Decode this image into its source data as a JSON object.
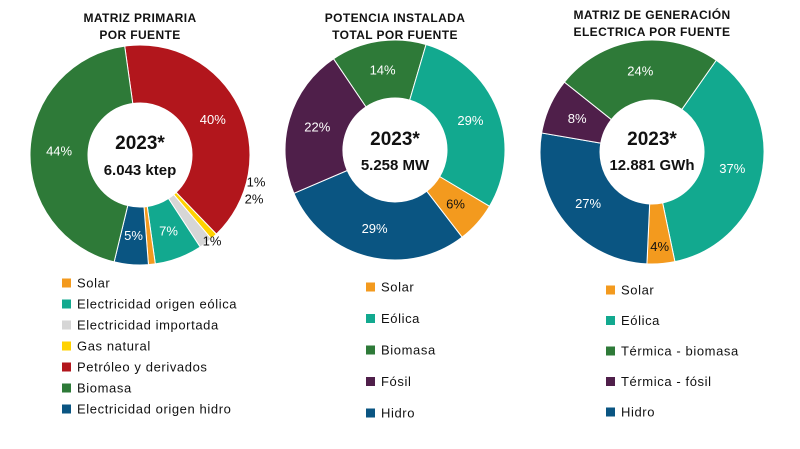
{
  "chart_data": [
    {
      "type": "donut",
      "title_lines": [
        "MATRIZ PRIMARIA",
        "POR FUENTE"
      ],
      "center_year": "2023*",
      "center_total": "6.043 ktep",
      "series": [
        {
          "name": "Petróleo y derivados",
          "value": 40,
          "label": "40%",
          "color": "#b2161c"
        },
        {
          "name": "Gas natural",
          "value": 1,
          "label": "1%",
          "color": "#ffd200"
        },
        {
          "name": "Electricidad importada",
          "value": 2,
          "label": "2%",
          "color": "#d6d6d6"
        },
        {
          "name": "Electricidad origen eólica",
          "value": 7,
          "label": "7%",
          "color": "#12a98f"
        },
        {
          "name": "Solar",
          "value": 1,
          "label": "1%",
          "color": "#f39a1e"
        },
        {
          "name": "Electricidad origen hidro",
          "value": 5,
          "label": "5%",
          "color": "#0a5582"
        },
        {
          "name": "Biomasa",
          "value": 44,
          "label": "44%",
          "color": "#2e7a38"
        }
      ],
      "legend": [
        "Solar",
        "Electricidad origen eólica",
        "Electricidad importada",
        "Gas natural",
        "Petróleo y derivados",
        "Biomasa",
        "Electricidad origen hidro"
      ]
    },
    {
      "type": "donut",
      "title_lines": [
        "POTENCIA INSTALADA",
        "TOTAL POR FUENTE"
      ],
      "center_year": "2023*",
      "center_total": "5.258 MW",
      "series": [
        {
          "name": "Biomasa",
          "value": 14,
          "label": "14%",
          "color": "#2e7a38"
        },
        {
          "name": "Eólica",
          "value": 29,
          "label": "29%",
          "color": "#12a98f"
        },
        {
          "name": "Solar",
          "value": 6,
          "label": "6%",
          "color": "#f39a1e"
        },
        {
          "name": "Hidro",
          "value": 29,
          "label": "29%",
          "color": "#0a5582"
        },
        {
          "name": "Fósil",
          "value": 22,
          "label": "22%",
          "color": "#4f1f4a"
        }
      ],
      "legend": [
        "Solar",
        "Eólica",
        "Biomasa",
        "Fósil",
        "Hidro"
      ]
    },
    {
      "type": "donut",
      "title_lines": [
        "MATRIZ DE GENERACIÓN",
        "ELECTRICA POR FUENTE"
      ],
      "center_year": "2023*",
      "center_total": "12.881 GWh",
      "series": [
        {
          "name": "Eólica",
          "value": 37,
          "label": "37%",
          "color": "#12a98f"
        },
        {
          "name": "Solar",
          "value": 4,
          "label": "4%",
          "color": "#f39a1e"
        },
        {
          "name": "Hidro",
          "value": 27,
          "label": "27%",
          "color": "#0a5582"
        },
        {
          "name": "Térmica - fósil",
          "value": 8,
          "label": "8%",
          "color": "#4f1f4a"
        },
        {
          "name": "Térmica - biomasa",
          "value": 24,
          "label": "24%",
          "color": "#2e7a38"
        }
      ],
      "legend": [
        "Solar",
        "Eólica",
        "Térmica - biomasa",
        "Térmica - fósil",
        "Hidro"
      ]
    }
  ]
}
